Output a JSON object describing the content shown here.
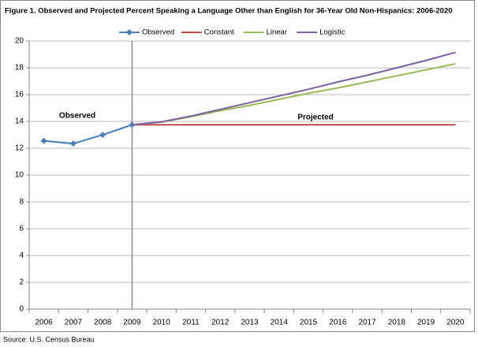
{
  "chart_data": {
    "type": "line",
    "title": "Figure 1.  Observed and Projected Percent Speaking a Language Other than English for 36-Year Old Non-Hispanics:  2006-2020",
    "categories": [
      "2006",
      "2007",
      "2008",
      "2009",
      "2010",
      "2011",
      "2012",
      "2013",
      "2014",
      "2015",
      "2016",
      "2017",
      "2018",
      "2019",
      "2020"
    ],
    "series": [
      {
        "name": "Observed",
        "color": "#4a7ebb",
        "marker": "diamond",
        "values": [
          12.55,
          12.35,
          13.0,
          13.75,
          null,
          null,
          null,
          null,
          null,
          null,
          null,
          null,
          null,
          null,
          null
        ]
      },
      {
        "name": "Constant",
        "color": "#be4b48",
        "values": [
          null,
          null,
          null,
          13.75,
          13.75,
          13.75,
          13.75,
          13.75,
          13.75,
          13.75,
          13.75,
          13.75,
          13.75,
          13.75,
          13.75
        ]
      },
      {
        "name": "Linear",
        "color": "#98b954",
        "values": [
          null,
          null,
          null,
          13.75,
          13.95,
          14.35,
          14.8,
          15.2,
          15.65,
          16.1,
          16.5,
          16.95,
          17.4,
          17.85,
          18.3
        ]
      },
      {
        "name": "Logistic",
        "color": "#7d60a0",
        "values": [
          null,
          null,
          null,
          13.75,
          13.97,
          14.4,
          14.9,
          15.4,
          15.9,
          16.4,
          16.95,
          17.45,
          18.0,
          18.55,
          19.15
        ]
      }
    ],
    "ylim": [
      0,
      20
    ],
    "yticks": [
      0,
      2,
      4,
      6,
      8,
      10,
      12,
      14,
      16,
      18,
      20
    ],
    "grid": true,
    "legend": "top",
    "reference_line": "2009",
    "annotations": [
      "Observed",
      "Projected"
    ],
    "source": "Source: U.S. Census Bureau"
  }
}
